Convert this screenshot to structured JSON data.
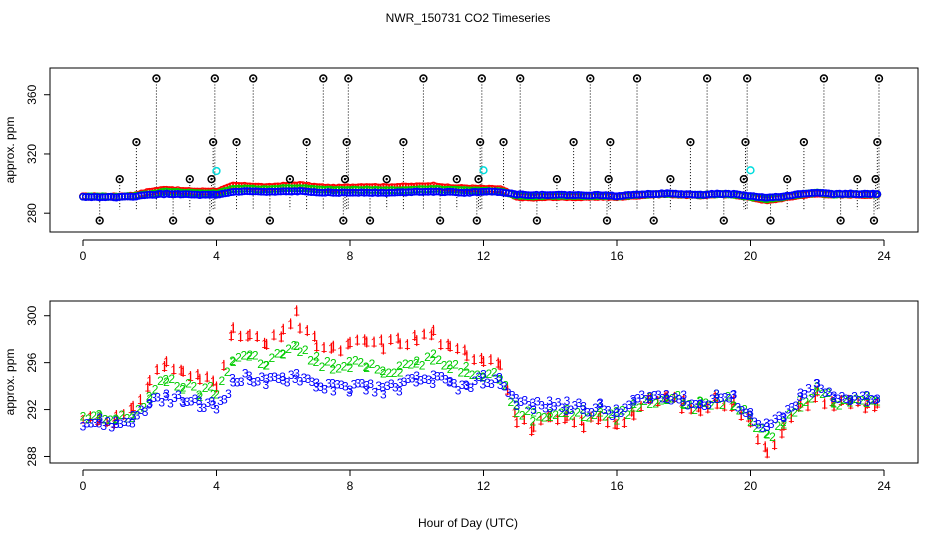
{
  "chart_data": [
    {
      "type": "scatter",
      "title": "NWR_150731  CO2 Timeseries",
      "ylabel": "approx. ppm",
      "xlim": [
        0,
        24
      ],
      "ylim": [
        270,
        374
      ],
      "xticks": [
        "0",
        "4",
        "8",
        "12",
        "16",
        "20",
        "24"
      ],
      "xtick_values": [
        0,
        4,
        8,
        12,
        16,
        20,
        24
      ],
      "yticks": [
        "280",
        "320",
        "360"
      ],
      "ytick_values": [
        280,
        320,
        360
      ],
      "series": [
        {
          "name": "red",
          "color": "#ff0000",
          "x": [
            0.0,
            0.5,
            1.0,
            1.5,
            2.0,
            2.5,
            3.0,
            3.5,
            3.9,
            4.0,
            4.5,
            5.0,
            5.5,
            6.0,
            6.5,
            7.0,
            7.5,
            8.0,
            8.5,
            9.0,
            9.5,
            10.0,
            10.5,
            11.0,
            11.5,
            12.0,
            12.5,
            13.0,
            13.5,
            14.0,
            14.5,
            15.0,
            15.5,
            16.0,
            16.5,
            17.0,
            17.5,
            18.0,
            18.5,
            19.0,
            19.5,
            20.0,
            20.5,
            21.0,
            21.5,
            22.0,
            22.5,
            23.0,
            23.5,
            23.8
          ],
          "y": [
            291.2,
            291.3,
            291.2,
            291.8,
            294.5,
            296.0,
            295.0,
            294.6,
            294.8,
            294.3,
            298.5,
            298.2,
            297.5,
            298.4,
            299.0,
            297.6,
            297.0,
            297.4,
            297.8,
            297.5,
            297.8,
            298.0,
            298.5,
            297.0,
            296.8,
            296.4,
            296.2,
            291.0,
            290.5,
            291.0,
            291.0,
            290.8,
            291.2,
            290.9,
            291.8,
            292.6,
            293.0,
            292.4,
            292.0,
            292.8,
            292.5,
            290.8,
            288.6,
            290.4,
            292.2,
            293.2,
            292.5,
            292.6,
            292.4,
            292.5
          ]
        },
        {
          "name": "green",
          "color": "#00cc00",
          "x": [
            0.0,
            0.5,
            1.0,
            1.5,
            2.0,
            2.5,
            3.0,
            3.5,
            3.9,
            4.0,
            4.5,
            5.0,
            5.5,
            6.0,
            6.5,
            7.0,
            7.5,
            8.0,
            8.5,
            9.0,
            9.5,
            10.0,
            10.5,
            11.0,
            11.5,
            12.0,
            12.5,
            13.0,
            13.5,
            14.0,
            14.5,
            15.0,
            15.5,
            16.0,
            16.5,
            17.0,
            17.5,
            18.0,
            18.5,
            19.0,
            19.5,
            20.0,
            20.5,
            21.0,
            21.5,
            22.0,
            22.5,
            23.0,
            23.5,
            23.8
          ],
          "y": [
            291.2,
            291.2,
            291.1,
            291.5,
            293.0,
            294.6,
            294.0,
            293.4,
            293.6,
            293.2,
            296.4,
            296.6,
            296.0,
            296.8,
            297.0,
            296.2,
            295.6,
            295.7,
            295.9,
            295.4,
            295.6,
            296.0,
            296.3,
            295.8,
            295.4,
            295.2,
            294.8,
            291.9,
            291.4,
            291.7,
            291.8,
            291.6,
            291.8,
            291.4,
            292.2,
            292.8,
            293.1,
            292.6,
            292.3,
            292.9,
            292.6,
            291.0,
            289.6,
            290.9,
            292.6,
            293.8,
            292.7,
            292.9,
            292.8,
            292.7
          ]
        },
        {
          "name": "blue",
          "color": "#0000ff",
          "x": [
            0.0,
            0.5,
            1.0,
            1.5,
            2.0,
            2.5,
            3.0,
            3.5,
            3.9,
            4.0,
            4.5,
            5.0,
            5.5,
            6.0,
            6.5,
            7.0,
            7.5,
            8.0,
            8.5,
            9.0,
            9.5,
            10.0,
            10.5,
            11.0,
            11.5,
            12.0,
            12.5,
            13.0,
            13.5,
            14.0,
            14.5,
            15.0,
            15.5,
            16.0,
            16.5,
            17.0,
            17.5,
            18.0,
            18.5,
            19.0,
            19.5,
            20.0,
            20.5,
            21.0,
            21.5,
            22.0,
            22.5,
            23.0,
            23.5,
            23.8
          ],
          "y": [
            291.0,
            290.9,
            290.8,
            291.2,
            292.4,
            293.0,
            292.8,
            292.3,
            292.4,
            292.2,
            294.4,
            294.8,
            294.3,
            294.6,
            294.8,
            294.2,
            293.8,
            293.9,
            294.0,
            293.7,
            294.0,
            294.5,
            294.6,
            294.2,
            293.8,
            294.6,
            294.4,
            292.7,
            292.3,
            292.4,
            292.3,
            292.1,
            292.2,
            291.6,
            292.6,
            293.0,
            293.3,
            292.8,
            292.4,
            293.1,
            292.9,
            291.5,
            290.5,
            291.3,
            293.0,
            294.0,
            292.9,
            293.1,
            293.0,
            292.9
          ]
        },
        {
          "name": "cyan",
          "color": "#00dddd",
          "x": [
            4.0,
            12.0,
            20.0
          ],
          "y": [
            308.5,
            309.0,
            309.0
          ]
        },
        {
          "name": "black",
          "color": "#000000",
          "x": [
            0.5,
            1.1,
            1.6,
            2.2,
            2.7,
            3.2,
            3.8,
            3.85,
            3.9,
            3.95,
            4.6,
            5.1,
            5.6,
            6.2,
            6.7,
            7.2,
            7.8,
            7.85,
            7.9,
            7.95,
            8.6,
            9.1,
            9.6,
            10.2,
            10.7,
            11.2,
            11.8,
            11.85,
            11.9,
            11.95,
            12.6,
            13.1,
            13.6,
            14.2,
            14.7,
            15.2,
            15.7,
            15.75,
            15.8,
            16.6,
            17.1,
            17.6,
            18.2,
            18.7,
            19.2,
            19.8,
            19.85,
            19.9,
            20.6,
            21.1,
            21.6,
            22.2,
            22.7,
            23.2,
            23.7,
            23.75,
            23.8,
            23.85
          ],
          "y": [
            275,
            303,
            328,
            371,
            275,
            303,
            275,
            303,
            328,
            371,
            328,
            371,
            275,
            303,
            328,
            371,
            275,
            303,
            328,
            371,
            275,
            303,
            328,
            371,
            275,
            303,
            275,
            303,
            328,
            371,
            328,
            371,
            275,
            303,
            328,
            371,
            275,
            303,
            328,
            371,
            275,
            303,
            328,
            371,
            275,
            303,
            328,
            371,
            275,
            303,
            328,
            371,
            275,
            303,
            275,
            303,
            328,
            371
          ]
        }
      ]
    },
    {
      "type": "scatter",
      "ylabel": "approx. ppm",
      "xlabel": "Hour of Day (UTC)",
      "xlim": [
        0,
        24
      ],
      "ylim": [
        287.7,
        301.0
      ],
      "xticks": [
        "0",
        "4",
        "8",
        "12",
        "16",
        "20",
        "24"
      ],
      "xtick_values": [
        0,
        4,
        8,
        12,
        16,
        20,
        24
      ],
      "yticks": [
        "288",
        "292",
        "296",
        "300"
      ],
      "ytick_values": [
        288,
        292,
        296,
        300
      ],
      "series": [
        {
          "name": "1",
          "symbol": "1",
          "color": "#ff0000",
          "x": [
            0.0,
            0.5,
            1.0,
            1.5,
            2.0,
            2.5,
            3.0,
            3.5,
            3.9,
            4.0,
            4.5,
            5.0,
            5.5,
            6.0,
            6.4,
            6.5,
            7.0,
            7.5,
            8.0,
            8.5,
            9.0,
            9.5,
            10.0,
            10.5,
            11.0,
            11.5,
            12.0,
            12.5,
            13.0,
            13.5,
            14.0,
            14.5,
            15.0,
            15.5,
            16.0,
            16.5,
            17.0,
            17.5,
            18.0,
            18.5,
            19.0,
            19.5,
            20.0,
            20.5,
            21.0,
            21.5,
            22.0,
            22.5,
            23.0,
            23.5,
            23.8
          ],
          "y": [
            291.2,
            291.3,
            291.2,
            291.8,
            294.5,
            296.0,
            295.0,
            294.6,
            294.8,
            294.3,
            298.5,
            298.2,
            297.5,
            298.4,
            300.5,
            299.0,
            297.6,
            297.0,
            297.4,
            297.8,
            297.5,
            297.8,
            298.0,
            298.5,
            297.0,
            296.8,
            296.4,
            296.2,
            291.0,
            290.5,
            291.0,
            291.0,
            290.8,
            291.2,
            290.9,
            291.8,
            292.6,
            293.0,
            292.4,
            292.0,
            292.8,
            292.5,
            290.8,
            288.6,
            290.4,
            292.2,
            293.2,
            292.5,
            292.6,
            292.4,
            292.5
          ]
        },
        {
          "name": "2",
          "symbol": "2",
          "color": "#00cc00",
          "x": [
            0.0,
            0.5,
            1.0,
            1.5,
            2.0,
            2.5,
            3.0,
            3.5,
            3.9,
            4.0,
            4.5,
            5.0,
            5.5,
            6.0,
            6.4,
            6.5,
            7.0,
            7.5,
            8.0,
            8.5,
            9.0,
            9.5,
            10.0,
            10.5,
            11.0,
            11.5,
            12.0,
            12.5,
            13.0,
            13.5,
            14.0,
            14.5,
            15.0,
            15.5,
            16.0,
            16.5,
            17.0,
            17.5,
            18.0,
            18.5,
            19.0,
            19.5,
            20.0,
            20.5,
            21.0,
            21.5,
            22.0,
            22.5,
            23.0,
            23.5,
            23.8
          ],
          "y": [
            291.2,
            291.2,
            291.1,
            291.5,
            293.0,
            294.6,
            294.0,
            293.4,
            293.6,
            293.2,
            296.4,
            296.6,
            296.0,
            296.8,
            297.2,
            297.0,
            296.2,
            295.6,
            295.7,
            295.9,
            295.4,
            295.6,
            296.0,
            296.3,
            295.8,
            295.4,
            295.2,
            294.8,
            291.9,
            291.4,
            291.7,
            291.8,
            291.6,
            291.8,
            291.4,
            292.2,
            292.8,
            293.1,
            292.6,
            292.3,
            292.9,
            292.6,
            291.0,
            289.6,
            290.9,
            292.6,
            293.8,
            292.7,
            292.9,
            292.8,
            292.7
          ]
        },
        {
          "name": "3",
          "symbol": "3",
          "color": "#0000ff",
          "x": [
            0.0,
            0.5,
            1.0,
            1.5,
            2.0,
            2.5,
            3.0,
            3.5,
            3.9,
            4.0,
            4.5,
            5.0,
            5.5,
            6.0,
            6.4,
            6.5,
            7.0,
            7.5,
            8.0,
            8.5,
            9.0,
            9.5,
            10.0,
            10.5,
            11.0,
            11.5,
            12.0,
            12.5,
            13.0,
            13.5,
            14.0,
            14.5,
            15.0,
            15.5,
            16.0,
            16.5,
            17.0,
            17.5,
            18.0,
            18.5,
            19.0,
            19.5,
            20.0,
            20.5,
            21.0,
            21.5,
            22.0,
            22.5,
            23.0,
            23.5,
            23.8
          ],
          "y": [
            291.0,
            290.9,
            290.8,
            291.2,
            292.4,
            293.0,
            292.8,
            292.3,
            292.4,
            292.2,
            294.4,
            294.8,
            294.3,
            294.6,
            295.0,
            294.8,
            294.2,
            293.8,
            293.9,
            294.0,
            293.7,
            294.0,
            294.5,
            294.6,
            294.2,
            293.8,
            294.6,
            294.4,
            292.7,
            292.3,
            292.4,
            292.3,
            292.1,
            292.2,
            291.6,
            292.6,
            293.0,
            293.3,
            292.8,
            292.4,
            293.1,
            292.9,
            291.5,
            290.5,
            291.3,
            293.0,
            294.0,
            292.9,
            293.1,
            293.0,
            292.9
          ]
        }
      ]
    }
  ]
}
